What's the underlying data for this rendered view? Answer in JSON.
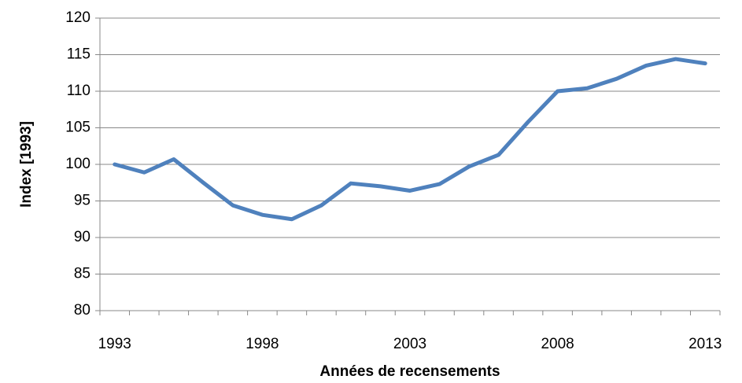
{
  "chart_data": {
    "type": "line",
    "xlabel": "Années de recensements",
    "ylabel": "Index [1993]",
    "categories": [
      "1993",
      null,
      null,
      null,
      null,
      "1998",
      null,
      null,
      null,
      null,
      "2003",
      null,
      null,
      null,
      null,
      "2008",
      null,
      null,
      null,
      null,
      "2013"
    ],
    "series": [
      {
        "name": "Index",
        "color": "#4f81bd",
        "values": [
          100.0,
          98.9,
          100.7,
          97.5,
          94.4,
          93.1,
          92.5,
          94.4,
          97.4,
          97.0,
          96.4,
          97.3,
          99.7,
          101.3,
          105.8,
          110.0,
          110.4,
          111.7,
          113.5,
          114.4,
          113.8
        ]
      }
    ],
    "ylim": [
      80,
      120
    ],
    "yticks": [
      80,
      85,
      90,
      95,
      100,
      105,
      110,
      115,
      120
    ],
    "grid": true
  }
}
